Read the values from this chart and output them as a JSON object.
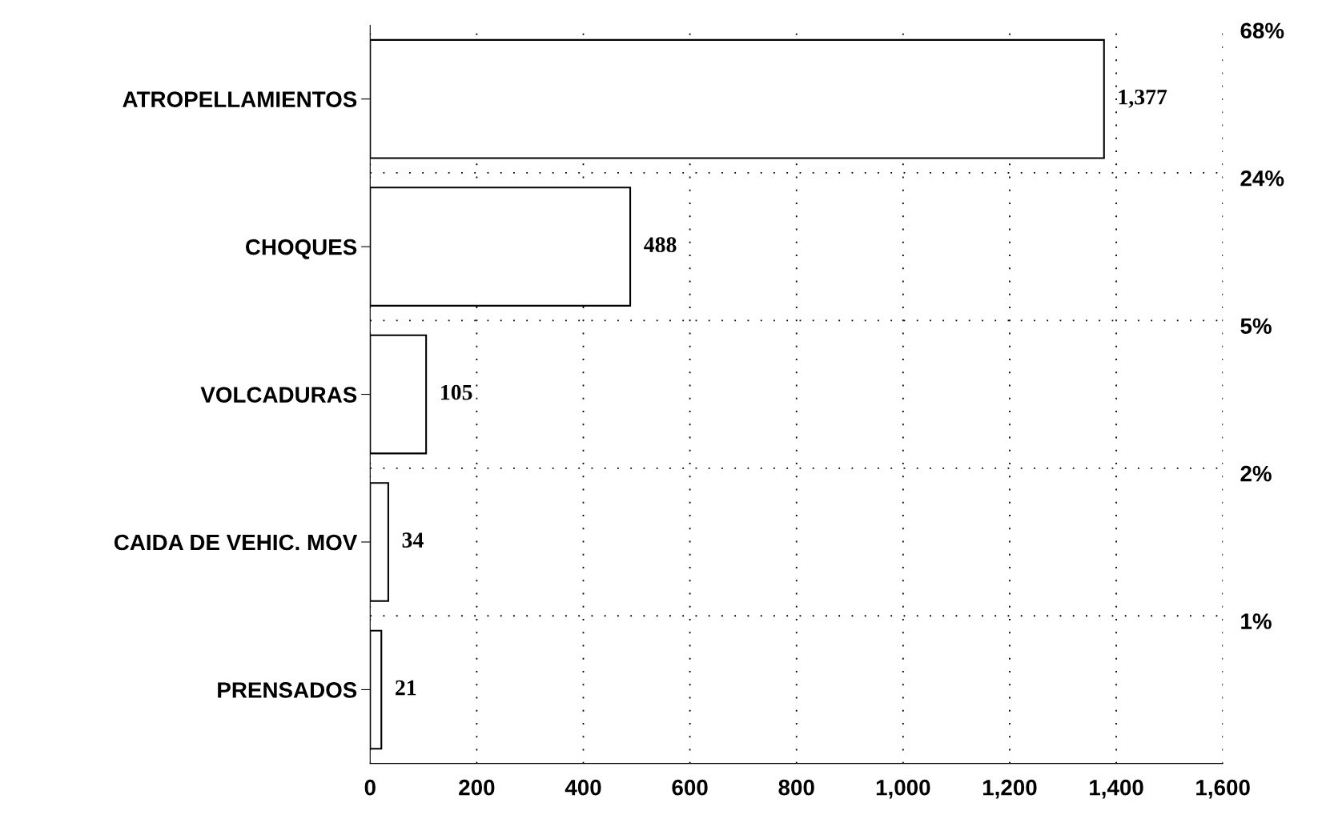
{
  "chart_data": {
    "type": "bar",
    "orientation": "horizontal",
    "categories": [
      "ATROPELLAMIENTOS",
      "CHOQUES",
      "VOLCADURAS",
      "CAIDA DE VEHIC. MOV",
      "PRENSADOS"
    ],
    "values": [
      1377,
      488,
      105,
      34,
      21
    ],
    "value_labels": [
      "1,377",
      "488",
      "105",
      "34",
      "21"
    ],
    "color": "#ffffff",
    "xlim": [
      0,
      1600
    ],
    "xticks": [
      0,
      200,
      400,
      600,
      800,
      {
        "value": 1000,
        "label": "1,000"
      },
      {
        "value": 1200,
        "label": "1,200"
      },
      {
        "value": 1400,
        "label": "1,400"
      },
      {
        "value": 1600,
        "label": "1,600"
      }
    ],
    "grid": true,
    "annotations": [
      "68%",
      "24%",
      "5%",
      "2%",
      "1%"
    ]
  }
}
